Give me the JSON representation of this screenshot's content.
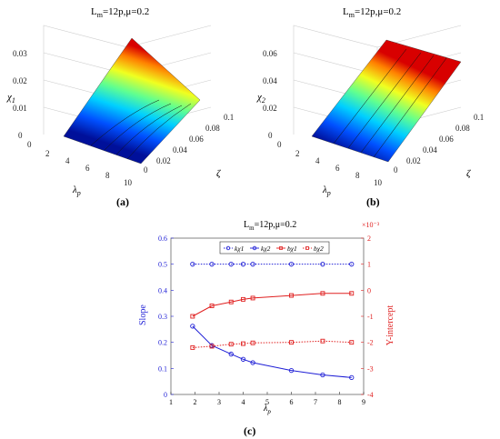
{
  "panel_a": {
    "title_main": "L",
    "title_sub": "m",
    "title_rest": "=12p,μ=0.2",
    "z_label": "χ",
    "z_label_sub": "1",
    "x_label": "λ",
    "x_label_sub": "p",
    "y_label": "ζ",
    "z_ticks": [
      "0",
      "0.01",
      "0.02",
      "0.03"
    ],
    "x_ticks": [
      "0",
      "2",
      "4",
      "6",
      "8",
      "10"
    ],
    "y_ticks": [
      "0",
      "0.02",
      "0.04",
      "0.06",
      "0.08",
      "0.1"
    ],
    "caption": "(a)"
  },
  "panel_b": {
    "title_main": "L",
    "title_sub": "m",
    "title_rest": "=12p,μ=0.2",
    "z_label": "χ",
    "z_label_sub": "2",
    "x_label": "λ",
    "x_label_sub": "p",
    "y_label": "ζ",
    "z_ticks": [
      "0",
      "0.02",
      "0.04",
      "0.06"
    ],
    "x_ticks": [
      "0",
      "2",
      "4",
      "6",
      "8",
      "10"
    ],
    "y_ticks": [
      "0",
      "0.02",
      "0.04",
      "0.06",
      "0.08",
      "0.1"
    ],
    "caption": "(b)"
  },
  "chart_data": [
    {
      "type": "surface",
      "title": "Lm=12p,μ=0.2",
      "xlabel": "λp",
      "ylabel": "ζ",
      "zlabel": "χ1",
      "xlim": [
        0,
        10
      ],
      "ylim": [
        0,
        0.1
      ],
      "zlim": [
        0,
        0.035
      ],
      "z_at_corners": {
        "lambda2_zeta0": 0.0,
        "lambda10_zeta0": 0.0,
        "lambda2_zeta0.1": 0.035,
        "lambda10_zeta0.1": 0.011
      },
      "colormap": "jet"
    },
    {
      "type": "surface",
      "title": "Lm=12p,μ=0.2",
      "xlabel": "λp",
      "ylabel": "ζ",
      "zlabel": "χ2",
      "xlim": [
        0,
        10
      ],
      "ylim": [
        0,
        0.1
      ],
      "zlim": [
        0,
        0.06
      ],
      "z_at_corners": {
        "lambda2_zeta0": 0.0,
        "lambda10_zeta0": 0.0,
        "lambda2_zeta0.1": 0.06,
        "lambda10_zeta0.1": 0.06
      },
      "colormap": "jet"
    },
    {
      "type": "line",
      "title": "Lm=12p,μ=0.2",
      "xlabel": "λp",
      "ylabel_left": "Slope",
      "ylabel_right": "Y-intercept",
      "right_axis_exponent": "×10⁻³",
      "xlim": [
        1,
        9
      ],
      "ylim_left": [
        0,
        0.6
      ],
      "ylim_right": [
        -4,
        2
      ],
      "x_ticks": [
        1,
        2,
        3,
        4,
        5,
        6,
        7,
        8,
        9
      ],
      "y_ticks_left": [
        0,
        0.1,
        0.2,
        0.3,
        0.4,
        0.5,
        0.6
      ],
      "y_ticks_right": [
        -4,
        -3,
        -2,
        -1,
        0,
        1,
        2
      ],
      "x": [
        1.9,
        2.7,
        3.5,
        4.0,
        4.4,
        6.0,
        7.3,
        8.5
      ],
      "legend_position": "top",
      "series": [
        {
          "name": "kχ1",
          "axis": "left",
          "color": "#1f1fd6",
          "style": "dotted",
          "marker": "circle",
          "values": [
            0.5,
            0.5,
            0.5,
            0.5,
            0.5,
            0.5,
            0.5,
            0.5
          ]
        },
        {
          "name": "kχ2",
          "axis": "left",
          "color": "#1f1fd6",
          "style": "solid",
          "marker": "circle",
          "values": [
            0.262,
            0.188,
            0.155,
            0.135,
            0.122,
            0.092,
            0.075,
            0.065
          ]
        },
        {
          "name": "bχ1",
          "axis": "right",
          "color": "#e02020",
          "style": "solid",
          "marker": "square",
          "values": [
            -1.0,
            -0.6,
            -0.45,
            -0.35,
            -0.3,
            -0.2,
            -0.12,
            -0.12
          ]
        },
        {
          "name": "bχ2",
          "axis": "right",
          "color": "#e02020",
          "style": "dotted",
          "marker": "square",
          "values": [
            -2.2,
            -2.15,
            -2.07,
            -2.05,
            -2.02,
            -2.0,
            -1.95,
            -2.0
          ]
        }
      ],
      "caption": "(c)"
    }
  ]
}
